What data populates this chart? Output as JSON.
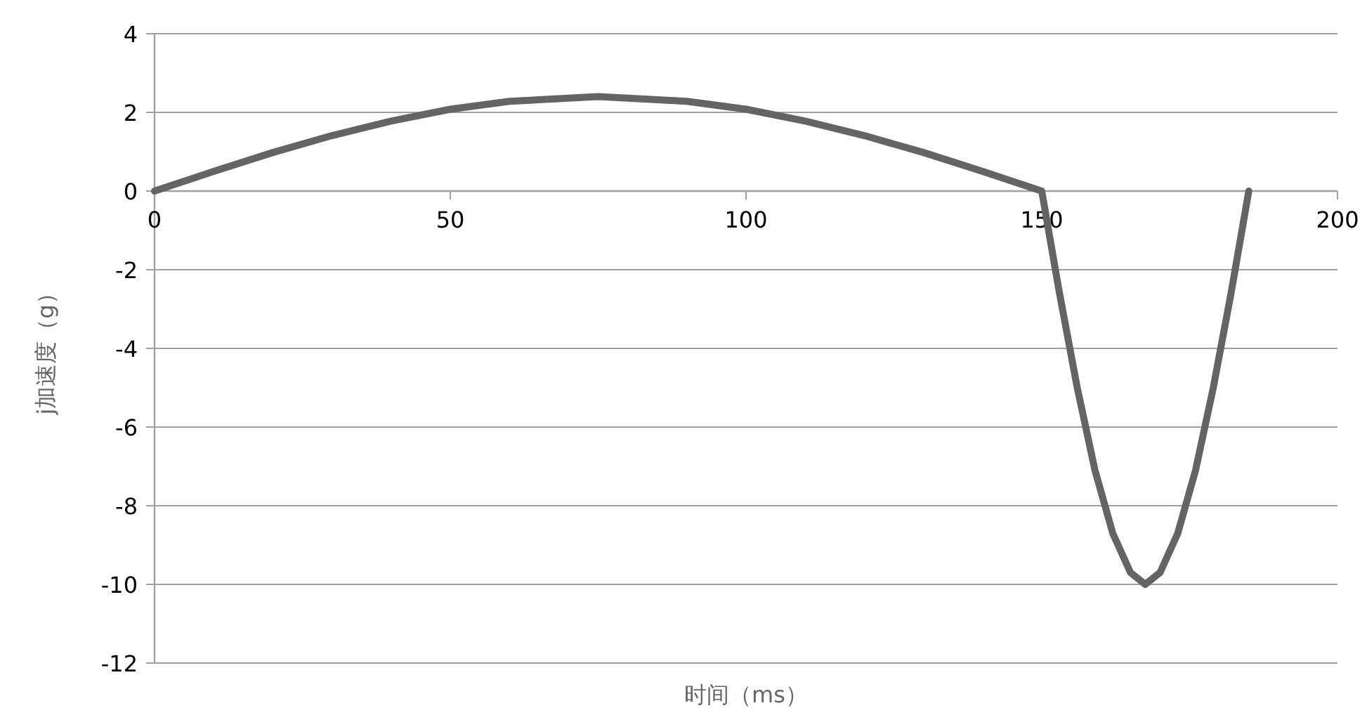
{
  "chart_data": {
    "type": "line",
    "xlabel": "时间（ms）",
    "ylabel": "j加速度（g）",
    "series": [
      {
        "color": "#646464",
        "x": [
          0,
          10,
          20,
          30,
          40,
          50,
          60,
          75,
          90,
          100,
          110,
          120,
          130,
          140,
          150,
          153,
          156,
          159,
          162,
          165,
          167.5,
          170,
          173,
          176,
          179,
          182,
          185
        ],
        "values": [
          0,
          0.5,
          0.98,
          1.41,
          1.78,
          2.08,
          2.28,
          2.4,
          2.28,
          2.08,
          1.78,
          1.41,
          0.98,
          0.5,
          0,
          -2.6,
          -5.0,
          -7.1,
          -8.7,
          -9.7,
          -10,
          -9.7,
          -8.7,
          -7.1,
          -5.0,
          -2.6,
          0
        ]
      }
    ],
    "xlim": [
      0,
      200
    ],
    "ylim": [
      -12,
      4
    ],
    "xticks": [
      0,
      50,
      100,
      150,
      200
    ],
    "yticks": [
      -12,
      -10,
      -8,
      -6,
      -4,
      -2,
      0,
      2,
      4
    ],
    "grid": "y"
  }
}
